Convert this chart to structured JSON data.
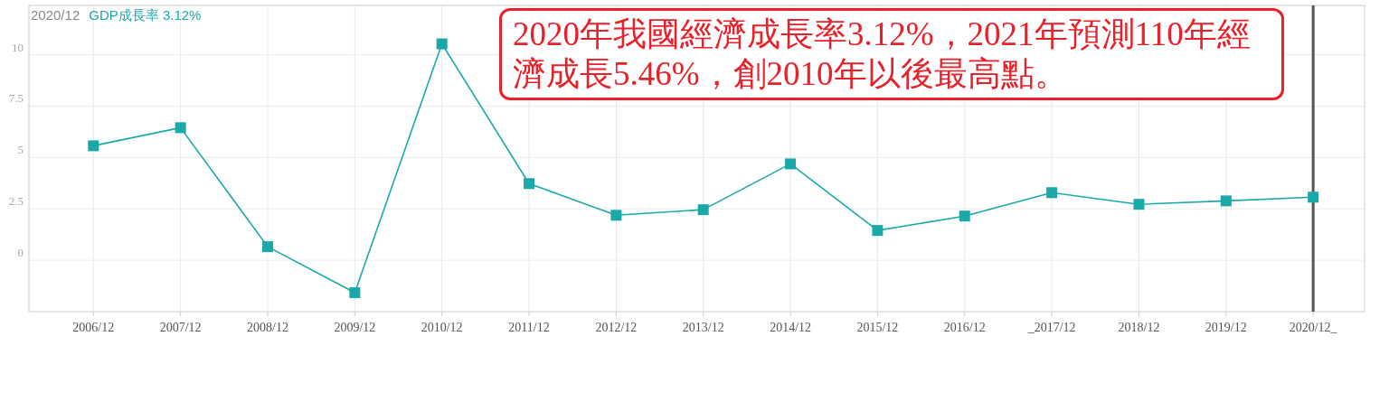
{
  "chart_data": {
    "type": "line",
    "categories": [
      "2006/12",
      "2007/12",
      "2008/12",
      "2009/12",
      "2010/12",
      "2011/12",
      "2012/12",
      "2013/12",
      "2014/12",
      "2015/12",
      "2016/12",
      "_2017/12",
      "2018/12",
      "2019/12",
      "2020/12_"
    ],
    "series": [
      {
        "name": "GDP成長率 3.12%",
        "color": "#1aa8a8",
        "values": [
          5.57,
          6.45,
          0.66,
          -1.58,
          10.53,
          3.73,
          2.19,
          2.46,
          4.69,
          1.45,
          2.15,
          3.29,
          2.72,
          2.89,
          3.07
        ]
      }
    ],
    "ylim": [
      -2.5,
      12.4
    ],
    "yticks": [
      0,
      2.5,
      5,
      7.5,
      10
    ],
    "grid": true,
    "marker": "square",
    "legend": "top left",
    "ref_lines": [
      {
        "axis": "x",
        "value": "2020/12_",
        "color": "#555555"
      }
    ],
    "annotations": [
      "2020/12",
      "2020年我國經濟成長率3.12%，2021年預測110年經濟成長5.46%，創2010年以後最高點。"
    ]
  }
}
